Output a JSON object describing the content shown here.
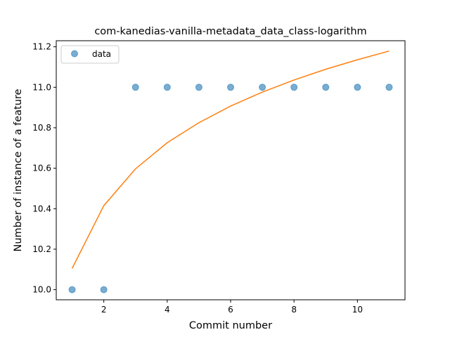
{
  "chart_data": {
    "type": "scatter",
    "title": "com-kanedias-vanilla-metadata_data_class-logarithm",
    "xlabel": "Commit number",
    "ylabel": "Number of instance of a feature",
    "xlim": [
      0.5,
      11.5
    ],
    "ylim": [
      9.95,
      11.23
    ],
    "xticks": [
      2,
      4,
      6,
      8,
      10
    ],
    "yticks": [
      10.0,
      10.2,
      10.4,
      10.6,
      10.8,
      11.0,
      11.2
    ],
    "ytick_labels": [
      "10.0",
      "10.2",
      "10.4",
      "10.6",
      "10.8",
      "11.0",
      "11.2"
    ],
    "grid": false,
    "legend": {
      "placement": "top-left",
      "entries": [
        "data"
      ]
    },
    "series": [
      {
        "name": "data",
        "kind": "scatter",
        "color": "#1f77b4",
        "x": [
          1,
          2,
          3,
          4,
          5,
          6,
          7,
          8,
          9,
          10,
          11
        ],
        "y": [
          10.0,
          10.0,
          11.0,
          11.0,
          11.0,
          11.0,
          11.0,
          11.0,
          11.0,
          11.0,
          11.0
        ]
      },
      {
        "kind": "line",
        "color": "#ff7f0e",
        "x": [
          1,
          2,
          3,
          4,
          5,
          6,
          7,
          8,
          9,
          10,
          11
        ],
        "y": [
          10.105,
          10.415,
          10.597,
          10.726,
          10.825,
          10.907,
          10.976,
          11.036,
          11.089,
          11.136,
          11.179
        ]
      }
    ]
  }
}
